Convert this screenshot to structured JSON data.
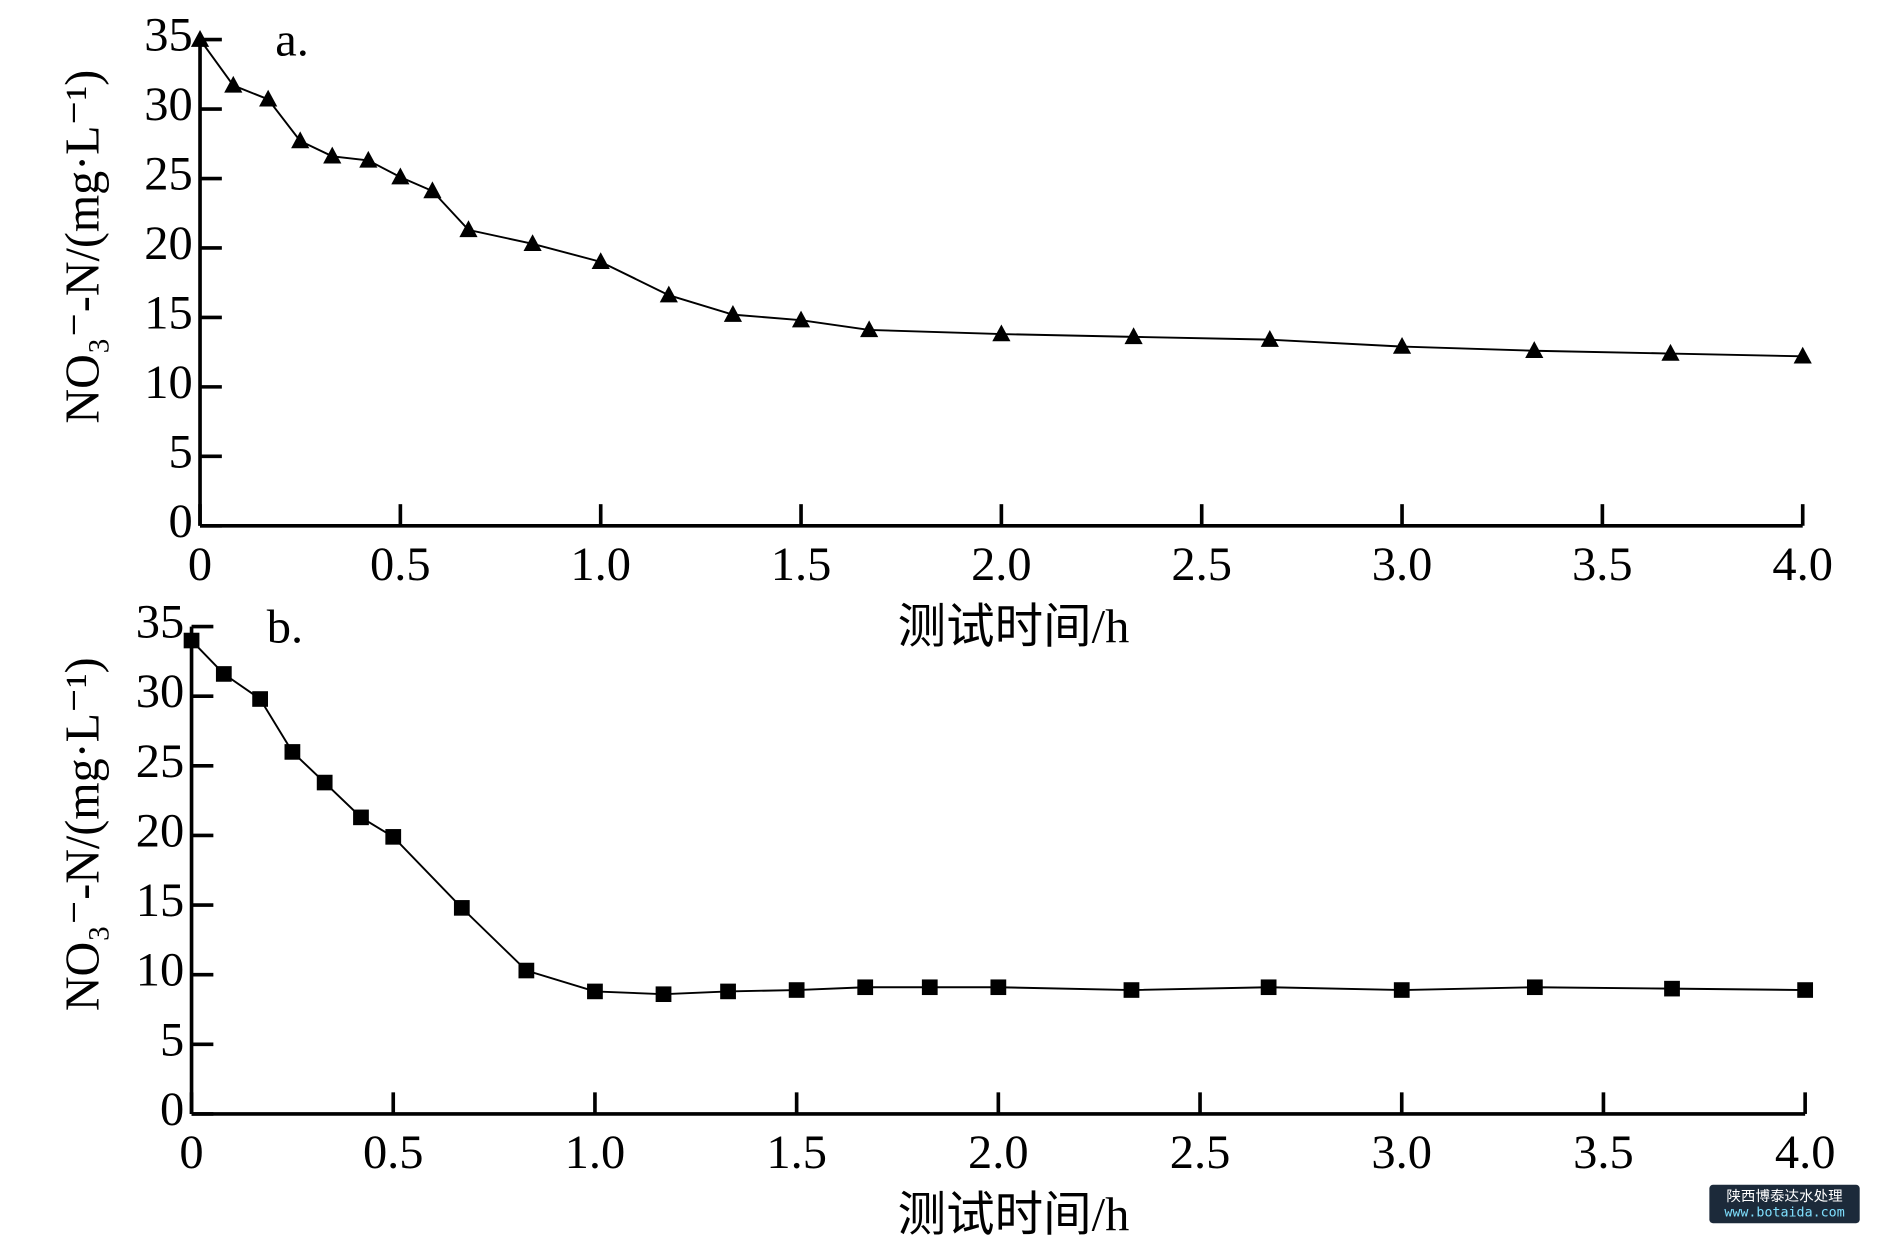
{
  "chart_data": [
    {
      "type": "line",
      "panel_label": "a.",
      "ylabel": "NO₃⁻-N/(mg·L⁻¹)",
      "xlabel": "测试时间/h",
      "marker": "triangle",
      "color": "#000000",
      "x": [
        0,
        0.083,
        0.17,
        0.25,
        0.33,
        0.42,
        0.5,
        0.58,
        0.67,
        0.83,
        1.0,
        1.17,
        1.33,
        1.5,
        1.67,
        2.0,
        2.33,
        2.67,
        3.0,
        3.33,
        3.67,
        4.0
      ],
      "values": [
        35,
        31.7,
        30.7,
        27.7,
        26.6,
        26.3,
        25.1,
        24.1,
        21.3,
        20.3,
        19.0,
        16.6,
        15.2,
        14.8,
        14.1,
        13.8,
        13.6,
        13.4,
        12.9,
        12.6,
        12.4,
        12.2
      ],
      "xlim": [
        0,
        4
      ],
      "ylim": [
        0,
        35
      ],
      "xticks": [
        0,
        0.5,
        {
          "value": 1,
          "label": "1.0"
        },
        1.5,
        {
          "value": 2,
          "label": "2.0"
        },
        2.5,
        {
          "value": 3,
          "label": "3.0"
        },
        3.5,
        {
          "value": 4,
          "label": "4.0"
        }
      ],
      "yticks": [
        0,
        5,
        10,
        15,
        20,
        25,
        30,
        35
      ]
    },
    {
      "type": "line",
      "panel_label": "b.",
      "ylabel": "NO₃⁻-N/(mg·L⁻¹)",
      "xlabel": "测试时间/h",
      "marker": "square",
      "color": "#000000",
      "x": [
        0,
        0.08,
        0.17,
        0.25,
        0.33,
        0.42,
        0.5,
        0.67,
        0.83,
        1.0,
        1.17,
        1.33,
        1.5,
        1.67,
        1.83,
        2.0,
        2.33,
        2.67,
        3.0,
        3.33,
        3.67,
        4.0
      ],
      "values": [
        34.0,
        31.6,
        29.8,
        26.0,
        23.8,
        21.3,
        19.9,
        14.8,
        10.3,
        8.8,
        8.6,
        8.8,
        8.9,
        9.1,
        9.1,
        9.1,
        8.9,
        9.1,
        8.9,
        9.1,
        9.0,
        8.9
      ],
      "xlim": [
        0,
        4
      ],
      "ylim": [
        0,
        35
      ],
      "xticks": [
        0,
        0.5,
        {
          "value": 1,
          "label": "1.0"
        },
        1.5,
        {
          "value": 2,
          "label": "2.0"
        },
        2.5,
        {
          "value": 3,
          "label": "3.0"
        },
        3.5,
        {
          "value": 4,
          "label": "4.0"
        }
      ],
      "yticks": [
        0,
        5,
        10,
        15,
        20,
        25,
        30,
        35
      ]
    }
  ],
  "watermark": {
    "title": "陕西博泰达水处理",
    "url": "www.botaida.com"
  }
}
